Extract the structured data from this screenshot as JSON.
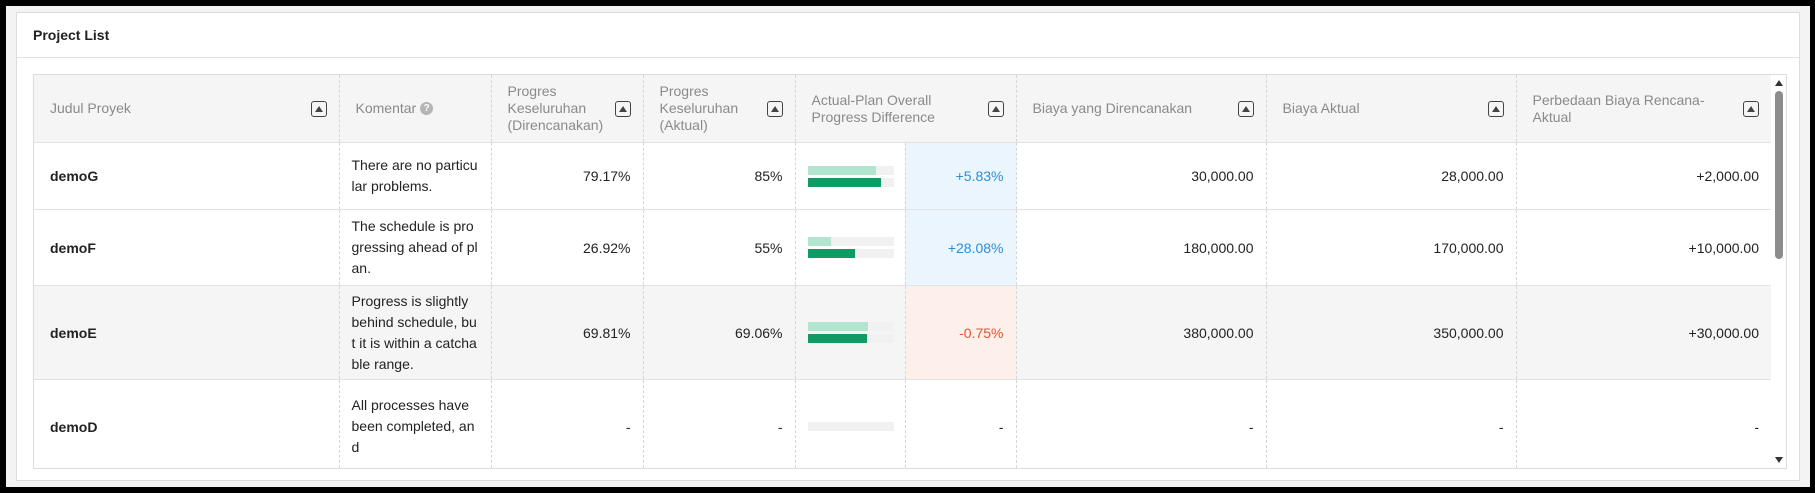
{
  "panel": {
    "title": "Project List"
  },
  "table": {
    "headers": {
      "title": "Judul Proyek",
      "comment": "Komentar",
      "plan_progress": "Progres Keseluruhan (Direncanakan)",
      "actual_progress": "Progres Keseluruhan (Aktual)",
      "progress_diff": "Actual-Plan Overall Progress Difference",
      "planned_cost": "Biaya yang Direncanakan",
      "actual_cost": "Biaya Aktual",
      "cost_diff": "Perbedaan Biaya Rencana-Aktual"
    },
    "rows": [
      {
        "name": "demoG",
        "comment": "There are no particular problems.",
        "plan": "79.17%",
        "actual": "85%",
        "plan_fraction": 0.7917,
        "actual_fraction": 0.85,
        "diff": "+5.83%",
        "planned_cost": "30,000.00",
        "actual_cost": "28,000.00",
        "cost_diff": "+2,000.00"
      },
      {
        "name": "demoF",
        "comment": "The schedule is progressing ahead of plan.",
        "plan": "26.92%",
        "actual": "55%",
        "plan_fraction": 0.2692,
        "actual_fraction": 0.55,
        "diff": "+28.08%",
        "planned_cost": "180,000.00",
        "actual_cost": "170,000.00",
        "cost_diff": "+10,000.00"
      },
      {
        "name": "demoE",
        "comment": "Progress is slightly behind schedule, but it is within a catchable range.",
        "plan": "69.81%",
        "actual": "69.06%",
        "plan_fraction": 0.6981,
        "actual_fraction": 0.6906,
        "diff": "-0.75%",
        "planned_cost": "380,000.00",
        "actual_cost": "350,000.00",
        "cost_diff": "+30,000.00"
      },
      {
        "name": "demoD",
        "comment": "All processes have been completed, and",
        "plan": "-",
        "actual": "-",
        "plan_fraction": 0,
        "actual_fraction": 0,
        "diff": "-",
        "planned_cost": "-",
        "actual_cost": "-",
        "cost_diff": "-"
      }
    ]
  },
  "colors": {
    "positive_text": "#2b8fd6",
    "positive_bg": "#eaf5fd",
    "negative_text": "#e0542b",
    "negative_bg": "#fdf0ea",
    "plan_bar": "#b2e5d0",
    "actual_bar": "#0f9b63"
  },
  "icons": {
    "sort": "sort-ascending-icon",
    "help": "question-circle-icon"
  }
}
